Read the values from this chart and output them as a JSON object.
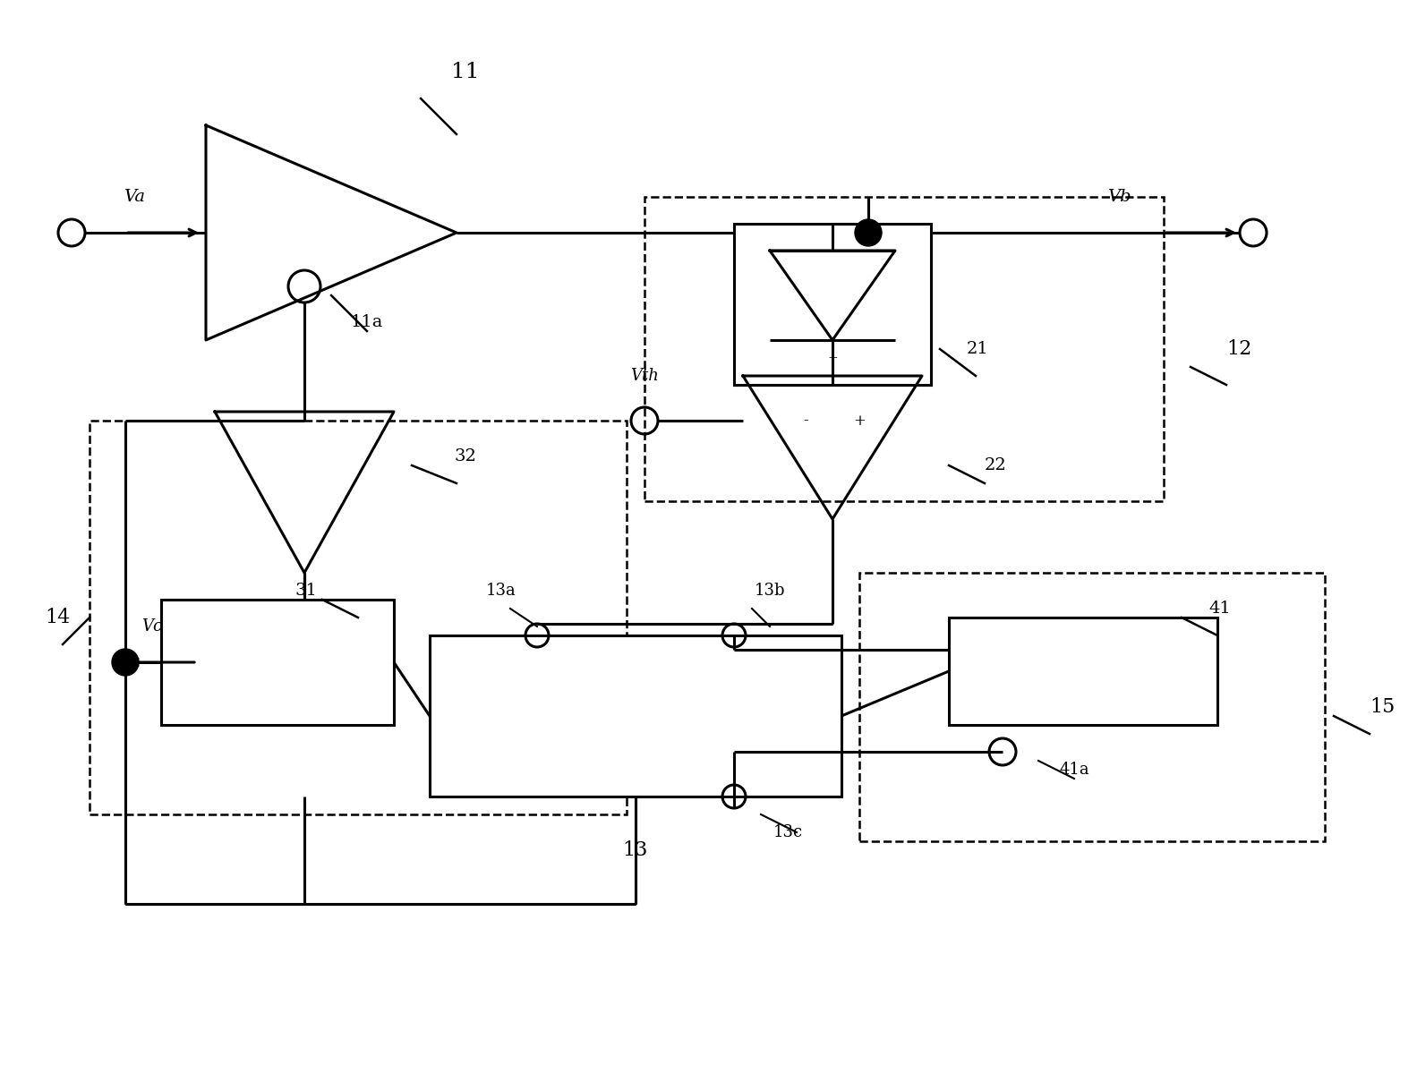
{
  "bg_color": "#ffffff",
  "lc": "#000000",
  "lw": 2.2,
  "dlw": 1.8,
  "figsize": [
    15.83,
    11.9
  ],
  "dpi": 100,
  "xlim": [
    0,
    158.3
  ],
  "ylim": [
    0,
    119.0
  ]
}
